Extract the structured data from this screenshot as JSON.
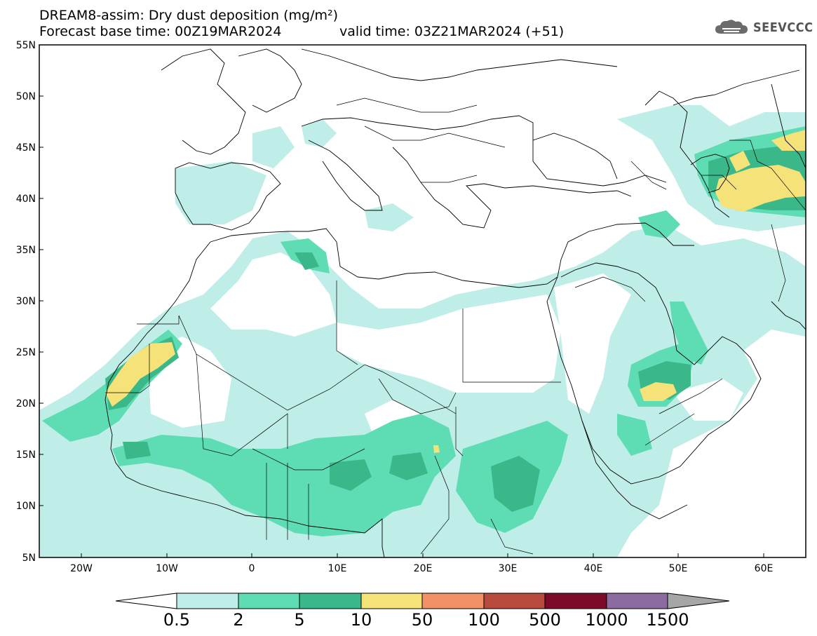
{
  "title": {
    "line1": "DREAM8-assim: Dry dust deposition (mg/m²)",
    "line2": "Forecast base time: 00Z19MAR2024",
    "line2b": "valid time: 03Z21MAR2024 (+51)"
  },
  "logo": {
    "icon": "cloud-logo-icon",
    "text": "SEEVCCC"
  },
  "map": {
    "lon_range": [
      -25,
      65
    ],
    "lat_range": [
      5,
      55
    ],
    "lat_ticks": [
      "55N",
      "50N",
      "45N",
      "40N",
      "35N",
      "30N",
      "25N",
      "20N",
      "15N",
      "10N",
      "5N"
    ],
    "lon_ticks": [
      "20W",
      "10W",
      "0",
      "10E",
      "20E",
      "30E",
      "40E",
      "50E",
      "60E"
    ]
  },
  "colorbar": {
    "labels": [
      "0.5",
      "2",
      "5",
      "10",
      "50",
      "100",
      "500",
      "1000",
      "1500"
    ],
    "colors": [
      "#bfeee8",
      "#5edcb4",
      "#3bb88a",
      "#f5e37a",
      "#f29168",
      "#b84b3e",
      "#7d0a28",
      "#8b6ba0"
    ],
    "under_color": "#ffffff",
    "over_color": "#a6a6a6"
  }
}
